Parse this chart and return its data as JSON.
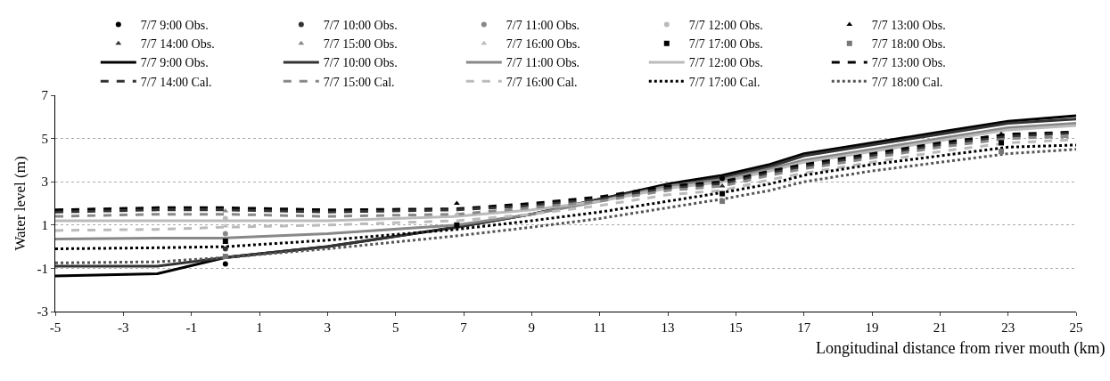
{
  "chart_data": {
    "type": "line",
    "xlabel": "Longitudinal distance from river mouth (km)",
    "ylabel": "Water level (m)",
    "xlim": [
      -5,
      25
    ],
    "ylim": [
      -3,
      7
    ],
    "xticks": [
      -5,
      -3,
      -1,
      1,
      3,
      5,
      7,
      9,
      11,
      13,
      15,
      17,
      19,
      21,
      23,
      25
    ],
    "yticks": [
      -3,
      -1,
      1,
      3,
      5,
      7
    ],
    "grid": "y",
    "legend": "top",
    "x": [
      -5,
      -2,
      0,
      3,
      6.8,
      9,
      11,
      13,
      14.6,
      16,
      17,
      19,
      21,
      23,
      25
    ],
    "series": [
      {
        "name": "7/7 9:00 Obs.",
        "type": "scatter",
        "marker": "circle",
        "color": "#000000",
        "x": [
          0,
          14.6
        ],
        "values": [
          -0.8,
          3.15
        ]
      },
      {
        "name": "7/7 10:00 Obs.",
        "type": "scatter",
        "marker": "circle",
        "color": "#333333",
        "x": [
          0
        ],
        "values": [
          -0.1
        ]
      },
      {
        "name": "7/7 11:00 Obs.",
        "type": "scatter",
        "marker": "circle",
        "color": "#888888",
        "x": [
          0
        ],
        "values": [
          0.6
        ]
      },
      {
        "name": "7/7 12:00 Obs.",
        "type": "scatter",
        "marker": "circle",
        "color": "#bbbbbb",
        "x": [
          0
        ],
        "values": [
          1.3
        ]
      },
      {
        "name": "7/7 13:00 Obs.",
        "type": "scatter",
        "marker": "triangle",
        "color": "#000000",
        "x": [
          6.8,
          22.8
        ],
        "values": [
          2.0,
          5.2
        ]
      },
      {
        "name": "7/7 14:00 Obs.",
        "type": "scatter",
        "marker": "triangle",
        "color": "#333333",
        "x": [
          14.6
        ],
        "values": [
          2.8
        ]
      },
      {
        "name": "7/7 15:00 Obs.",
        "type": "scatter",
        "marker": "triangle",
        "color": "#888888",
        "x": [
          0
        ],
        "values": [
          1.65
        ]
      },
      {
        "name": "7/7 16:00 Obs.",
        "type": "scatter",
        "marker": "triangle",
        "color": "#bbbbbb",
        "x": [
          0,
          6.8
        ],
        "values": [
          0.95,
          1.5
        ]
      },
      {
        "name": "7/7 17:00 Obs.",
        "type": "scatter",
        "marker": "square",
        "color": "#000000",
        "x": [
          0,
          6.8,
          14.6,
          22.8
        ],
        "values": [
          0.25,
          1.0,
          2.45,
          4.8
        ]
      },
      {
        "name": "7/7 18:00 Obs.",
        "type": "scatter",
        "marker": "square",
        "color": "#777777",
        "x": [
          0,
          14.6,
          22.8
        ],
        "values": [
          -0.45,
          2.1,
          4.4
        ]
      },
      {
        "name": "7/7 9:00 Obs.",
        "line_style": "solid",
        "color": "#000000",
        "values": [
          -1.35,
          -1.25,
          -0.5,
          0.0,
          0.9,
          1.5,
          2.2,
          2.9,
          3.3,
          3.8,
          4.3,
          4.8,
          5.3,
          5.8,
          6.05
        ]
      },
      {
        "name": "7/7 10:00 Obs.",
        "line_style": "solid",
        "color": "#333333",
        "values": [
          -0.9,
          -0.9,
          -0.5,
          0.0,
          0.9,
          1.5,
          2.2,
          2.8,
          3.2,
          3.7,
          4.2,
          4.7,
          5.2,
          5.7,
          5.9
        ]
      },
      {
        "name": "7/7 11:00 Obs.",
        "line_style": "solid",
        "color": "#888888",
        "values": [
          0.35,
          0.4,
          0.4,
          0.6,
          1.0,
          1.5,
          2.1,
          2.8,
          3.1,
          3.6,
          4.0,
          4.5,
          5.0,
          5.5,
          5.7
        ]
      },
      {
        "name": "7/7 12:00 Obs.",
        "line_style": "solid",
        "color": "#bbbbbb",
        "values": [
          1.2,
          1.2,
          1.2,
          1.2,
          1.4,
          1.7,
          2.1,
          2.7,
          3.0,
          3.5,
          3.9,
          4.4,
          4.9,
          5.4,
          5.6
        ]
      },
      {
        "name": "7/7 13:00 Obs.",
        "line_style": "dashed",
        "color": "#000000",
        "values": [
          1.7,
          1.8,
          1.8,
          1.7,
          1.75,
          2.0,
          2.3,
          2.8,
          3.0,
          3.5,
          3.8,
          4.3,
          4.8,
          5.2,
          5.3
        ]
      },
      {
        "name": "7/7 14:00 Cal.",
        "line_style": "dashed",
        "color": "#333333",
        "values": [
          1.6,
          1.7,
          1.7,
          1.6,
          1.7,
          1.9,
          2.2,
          2.7,
          2.9,
          3.4,
          3.7,
          4.2,
          4.7,
          5.1,
          5.25
        ]
      },
      {
        "name": "7/7 15:00 Cal.",
        "line_style": "dashed",
        "color": "#888888",
        "values": [
          1.4,
          1.5,
          1.5,
          1.4,
          1.5,
          1.8,
          2.1,
          2.6,
          2.8,
          3.3,
          3.6,
          4.1,
          4.6,
          5.0,
          5.1
        ]
      },
      {
        "name": "7/7 16:00 Cal.",
        "line_style": "dashed",
        "color": "#bbbbbb",
        "values": [
          0.75,
          0.8,
          0.9,
          1.0,
          1.2,
          1.5,
          1.9,
          2.4,
          2.6,
          3.1,
          3.4,
          3.9,
          4.4,
          4.8,
          4.95
        ]
      },
      {
        "name": "7/7 17:00 Cal.",
        "line_style": "dotted",
        "color": "#000000",
        "values": [
          -0.1,
          -0.05,
          0.0,
          0.3,
          0.8,
          1.2,
          1.6,
          2.1,
          2.5,
          2.9,
          3.3,
          3.8,
          4.2,
          4.6,
          4.7
        ]
      },
      {
        "name": "7/7 18:00 Cal.",
        "line_style": "dotted",
        "color": "#555555",
        "values": [
          -0.75,
          -0.7,
          -0.5,
          -0.1,
          0.5,
          0.9,
          1.3,
          1.8,
          2.2,
          2.6,
          3.0,
          3.5,
          3.9,
          4.3,
          4.5
        ]
      }
    ]
  }
}
